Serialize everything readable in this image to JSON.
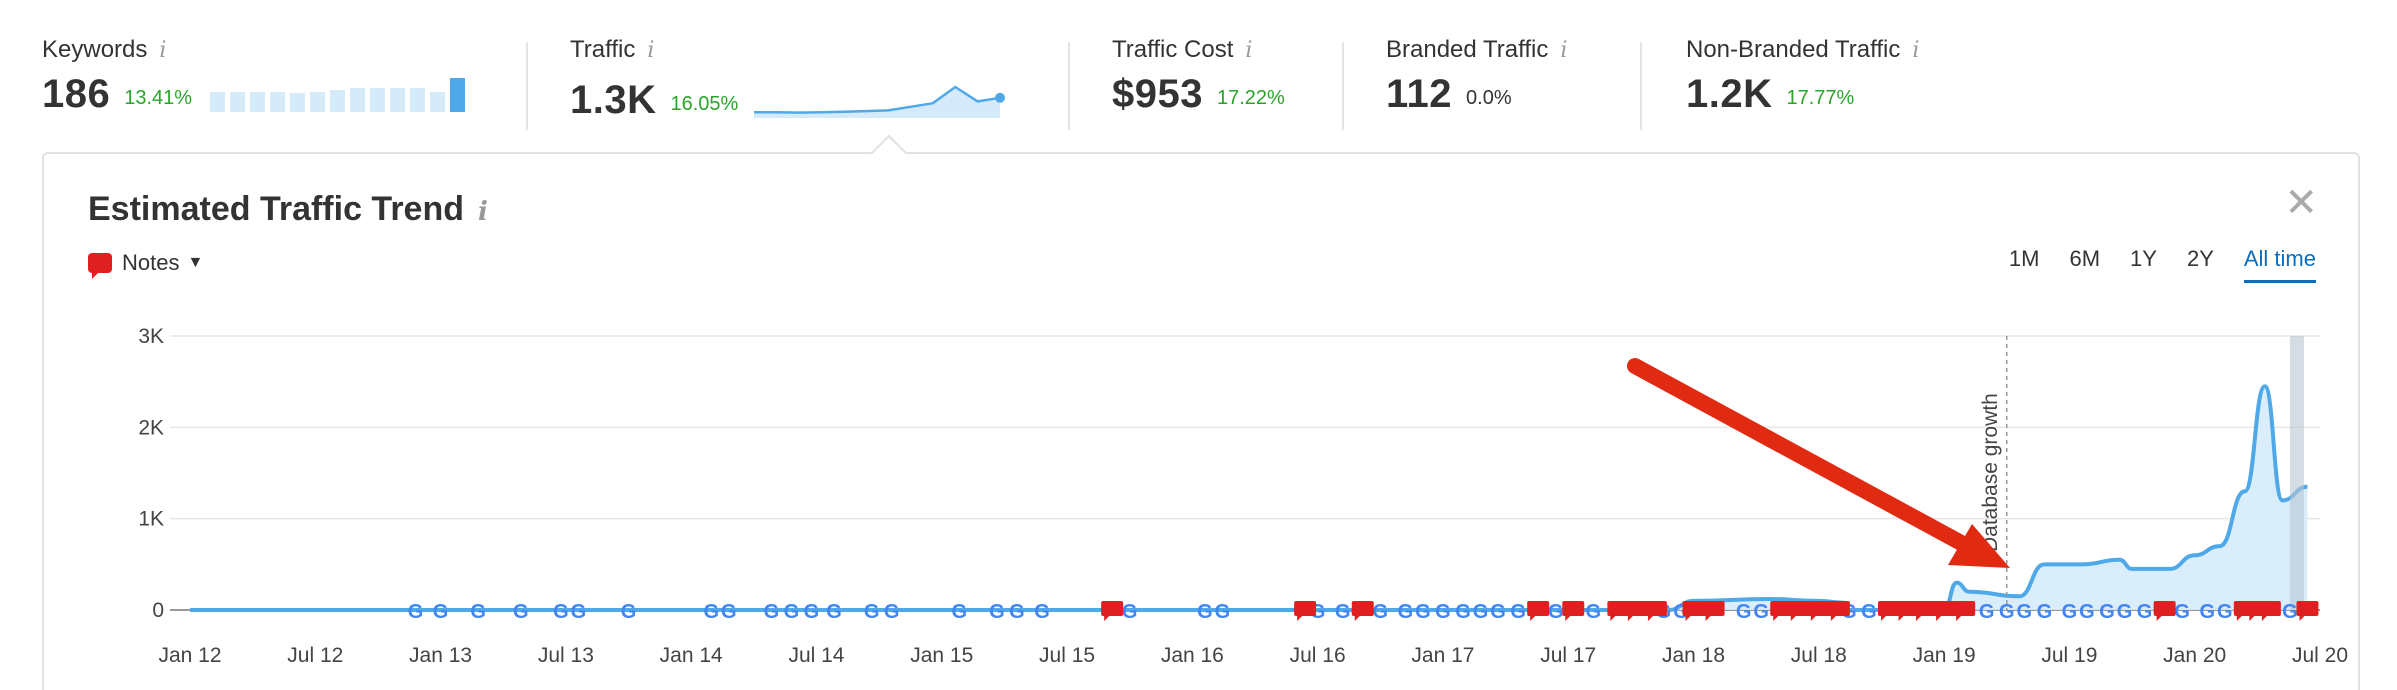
{
  "metrics": [
    {
      "label": "Keywords",
      "value": "186",
      "change": "13.41%"
    },
    {
      "label": "Traffic",
      "value": "1.3K",
      "change": "16.05%"
    },
    {
      "label": "Traffic Cost",
      "value": "$953",
      "change": "17.22%"
    },
    {
      "label": "Branded Traffic",
      "value": "112",
      "change": "0.0%"
    },
    {
      "label": "Non-Branded Traffic",
      "value": "1.2K",
      "change": "17.77%"
    }
  ],
  "keywords_bars": [
    0.6,
    0.6,
    0.6,
    0.6,
    0.55,
    0.6,
    0.65,
    0.7,
    0.7,
    0.7,
    0.7,
    0.6,
    1.0
  ],
  "traffic_sparkline": [
    0.05,
    0.05,
    0.04,
    0.05,
    0.06,
    0.08,
    0.1,
    0.2,
    0.3,
    0.75,
    0.35,
    0.45
  ],
  "panel": {
    "title": "Estimated Traffic Trend",
    "notes_label": "Notes",
    "close_icon": "close-icon",
    "ranges": [
      "1M",
      "6M",
      "1Y",
      "2Y",
      "All time"
    ],
    "active_range": "All time"
  },
  "colors": {
    "accent": "#4fa8e8",
    "area": "#d6ebfa",
    "positive": "#2aa52a",
    "note": "#e02020",
    "active_tab": "#0a6ebd",
    "arrow": "#e02a12"
  },
  "chart_data": {
    "type": "area",
    "y_ticks": [
      "0",
      "1K",
      "2K",
      "3K"
    ],
    "y_tick_values": [
      0,
      1000,
      2000,
      3000
    ],
    "ylim": [
      0,
      3000
    ],
    "x_tick_labels": [
      "Jan 12",
      "Jul 12",
      "Jan 13",
      "Jul 13",
      "Jan 14",
      "Jul 14",
      "Jan 15",
      "Jul 15",
      "Jan 16",
      "Jul 16",
      "Jan 17",
      "Jul 17",
      "Jan 18",
      "Jul 18",
      "Jan 19",
      "Jul 19",
      "Jan 20",
      "Jul 20"
    ],
    "xlim": [
      2012.0,
      2020.5
    ],
    "annotation": {
      "label": "Database growth",
      "x": 2019.25
    },
    "series": [
      {
        "values": [
          [
            2012.0,
            0
          ],
          [
            2017.9,
            0
          ],
          [
            2018.0,
            100
          ],
          [
            2018.3,
            120
          ],
          [
            2018.5,
            100
          ],
          [
            2018.6,
            80
          ],
          [
            2018.62,
            0
          ],
          [
            2019.0,
            0
          ],
          [
            2019.05,
            300
          ],
          [
            2019.1,
            200
          ],
          [
            2019.3,
            150
          ],
          [
            2019.4,
            500
          ],
          [
            2019.55,
            500
          ],
          [
            2019.7,
            550
          ],
          [
            2019.75,
            450
          ],
          [
            2019.9,
            450
          ],
          [
            2020.0,
            600
          ],
          [
            2020.1,
            700
          ],
          [
            2020.2,
            1300
          ],
          [
            2020.28,
            2450
          ],
          [
            2020.35,
            1200
          ],
          [
            2020.45,
            1350
          ]
        ]
      }
    ],
    "google_markers": [
      2012.9,
      2013.0,
      2013.15,
      2013.32,
      2013.48,
      2013.55,
      2013.75,
      2014.08,
      2014.15,
      2014.32,
      2014.4,
      2014.48,
      2014.57,
      2014.72,
      2014.8,
      2015.07,
      2015.22,
      2015.3,
      2015.4,
      2015.75,
      2016.05,
      2016.12,
      2016.5,
      2016.6,
      2016.75,
      2016.85,
      2016.92,
      2017.0,
      2017.08,
      2017.15,
      2017.22,
      2017.3,
      2017.45,
      2017.6,
      2017.88,
      2017.95,
      2018.2,
      2018.27,
      2018.62,
      2018.7,
      2019.17,
      2019.25,
      2019.32,
      2019.4,
      2019.5,
      2019.57,
      2019.65,
      2019.72,
      2019.8,
      2019.95,
      2020.05,
      2020.12,
      2020.38
    ],
    "note_markers": [
      2015.68,
      2016.45,
      2016.68,
      2017.38,
      2017.52,
      2017.7,
      2017.77,
      2017.85,
      2018.0,
      2018.08,
      2018.35,
      2018.42,
      2018.5,
      2018.58,
      2018.78,
      2018.85,
      2018.92,
      2019.0,
      2019.08,
      2019.88,
      2020.2,
      2020.25,
      2020.3,
      2020.45
    ]
  }
}
